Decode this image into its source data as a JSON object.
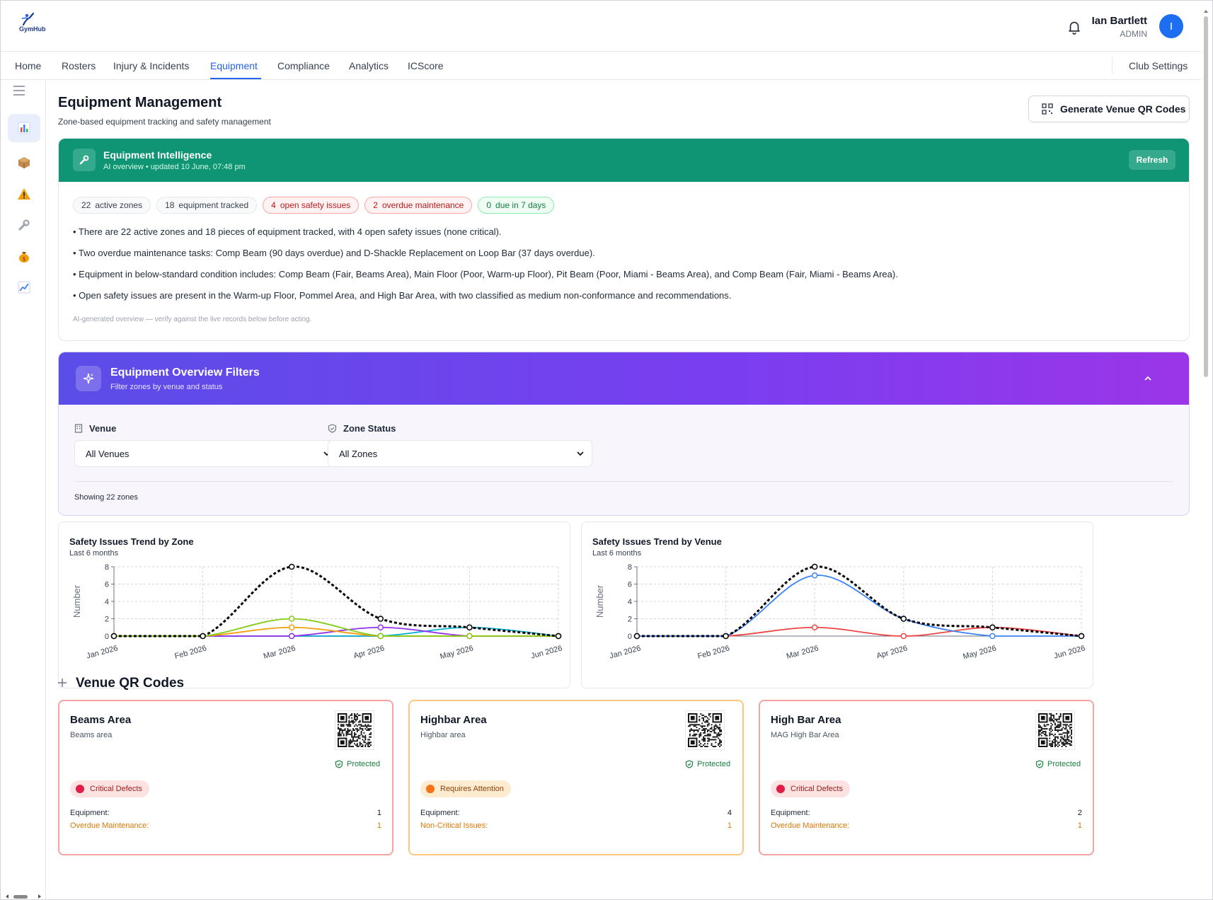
{
  "header": {
    "logo_text": "GymHub",
    "user_name": "Ian Bartlett",
    "user_role": "ADMIN",
    "avatar_initial": "I"
  },
  "nav": {
    "items": [
      "Home",
      "Rosters",
      "Injury & Incidents",
      "Equipment",
      "Compliance",
      "Analytics",
      "ICScore"
    ],
    "active": "Equipment",
    "club_settings": "Club Settings"
  },
  "sidebar": {
    "icons": [
      "menu-icon",
      "bar-chart-icon",
      "package-icon",
      "warning-icon",
      "wrench-icon",
      "money-bag-icon",
      "trend-chart-icon"
    ]
  },
  "page": {
    "title": "Equipment Management",
    "subtitle": "Zone-based equipment tracking and safety management",
    "qr_button": "Generate Venue QR Codes"
  },
  "intelligence": {
    "title": "Equipment Intelligence",
    "subtitle": "AI overview • updated 10 June, 07:48 pm",
    "refresh_label": "Refresh",
    "chips": [
      {
        "count": "22",
        "label": "active zones",
        "style": "neutral"
      },
      {
        "count": "18",
        "label": "equipment tracked",
        "style": "neutral"
      },
      {
        "count": "4",
        "label": "open safety issues",
        "style": "red"
      },
      {
        "count": "2",
        "label": "overdue maintenance",
        "style": "red"
      },
      {
        "count": "0",
        "label": "due in 7 days",
        "style": "green"
      }
    ],
    "bullets": [
      "• There are 22 active zones and 18 pieces of equipment tracked, with 4 open safety issues (none critical).",
      "• Two overdue maintenance tasks: Comp Beam (90 days overdue) and D-Shackle Replacement on Loop Bar (37 days overdue).",
      "• Equipment in below-standard condition includes: Comp Beam (Fair, Beams Area), Main Floor (Poor, Warm-up Floor), Pit Beam (Poor, Miami - Beams Area), and Comp Beam (Fair, Miami - Beams Area).",
      "• Open safety issues are present in the Warm-up Floor, Pommel Area, and High Bar Area, with two classified as medium non-conformance and recommendations."
    ],
    "disclaimer": "AI-generated overview — verify against the live records below before acting."
  },
  "filters": {
    "title": "Equipment Overview Filters",
    "subtitle": "Filter zones by venue and status",
    "venue_label": "Venue",
    "venue_value": "All Venues",
    "status_label": "Zone Status",
    "status_value": "All Zones",
    "showing": "Showing 22 zones"
  },
  "chart_data": [
    {
      "type": "line",
      "title": "Safety Issues Trend by Zone",
      "subtitle": "Last 6 months",
      "ylabel": "Number",
      "x": [
        "Jan 2026",
        "Feb 2026",
        "Mar 2026",
        "Apr 2026",
        "May 2026",
        "Jun 2026"
      ],
      "ylim": [
        0,
        8
      ],
      "yticks": [
        0,
        2,
        4,
        6,
        8
      ],
      "grid": true,
      "series": [
        {
          "color": "#000000",
          "dashed": true,
          "values": [
            0,
            0,
            8,
            2,
            1,
            0
          ]
        },
        {
          "color": "#84cc16",
          "values": [
            0,
            0,
            2,
            0,
            0,
            0
          ]
        },
        {
          "color": "#f59e0b",
          "values": [
            0,
            0,
            1,
            0,
            0,
            0
          ]
        },
        {
          "color": "#9333ea",
          "values": [
            0,
            0,
            0,
            1,
            0,
            0
          ]
        },
        {
          "color": "#06b6d4",
          "values": [
            0,
            0,
            0,
            0,
            1,
            0
          ]
        },
        {
          "color": "#ec4899",
          "values": [
            0,
            0,
            0,
            0,
            0,
            0
          ]
        }
      ]
    },
    {
      "type": "line",
      "title": "Safety Issues Trend by Venue",
      "subtitle": "Last 6 months",
      "ylabel": "Number",
      "x": [
        "Jan 2026",
        "Feb 2026",
        "Mar 2026",
        "Apr 2026",
        "May 2026",
        "Jun 2026"
      ],
      "ylim": [
        0,
        8
      ],
      "yticks": [
        0,
        2,
        4,
        6,
        8
      ],
      "grid": true,
      "series": [
        {
          "color": "#000000",
          "dashed": true,
          "values": [
            0,
            0,
            8,
            2,
            1,
            0
          ]
        },
        {
          "color": "#3b82f6",
          "values": [
            0,
            0,
            7,
            2,
            0,
            0
          ]
        },
        {
          "color": "#ef4444",
          "values": [
            0,
            0,
            1,
            0,
            1,
            0
          ]
        }
      ]
    }
  ],
  "qr_section": {
    "title": "Venue QR Codes",
    "venues": [
      {
        "name": "Beams Area",
        "desc": "Beams area",
        "protected": "Protected",
        "status": "Critical Defects",
        "status_style": "crit",
        "rows": [
          {
            "label": "Equipment:",
            "value": "1"
          },
          {
            "label": "Overdue Maintenance:",
            "value": "1"
          }
        ]
      },
      {
        "name": "Highbar Area",
        "desc": "Highbar area",
        "protected": "Protected",
        "status": "Requires Attention",
        "status_style": "att",
        "rows": [
          {
            "label": "Equipment:",
            "value": "4"
          },
          {
            "label": "Non-Critical Issues:",
            "value": "1"
          }
        ]
      },
      {
        "name": "High Bar Area",
        "desc": "MAG High Bar Area",
        "protected": "Protected",
        "status": "Critical Defects",
        "status_style": "crit",
        "rows": [
          {
            "label": "Equipment:",
            "value": "2"
          },
          {
            "label": "Overdue Maintenance:",
            "value": "1"
          }
        ]
      }
    ]
  },
  "colors": {
    "accent": "#2563eb",
    "intel_header": "#0f9474",
    "filter_gradient_start": "#5b4de8",
    "filter_gradient_end": "#9b35e8"
  }
}
